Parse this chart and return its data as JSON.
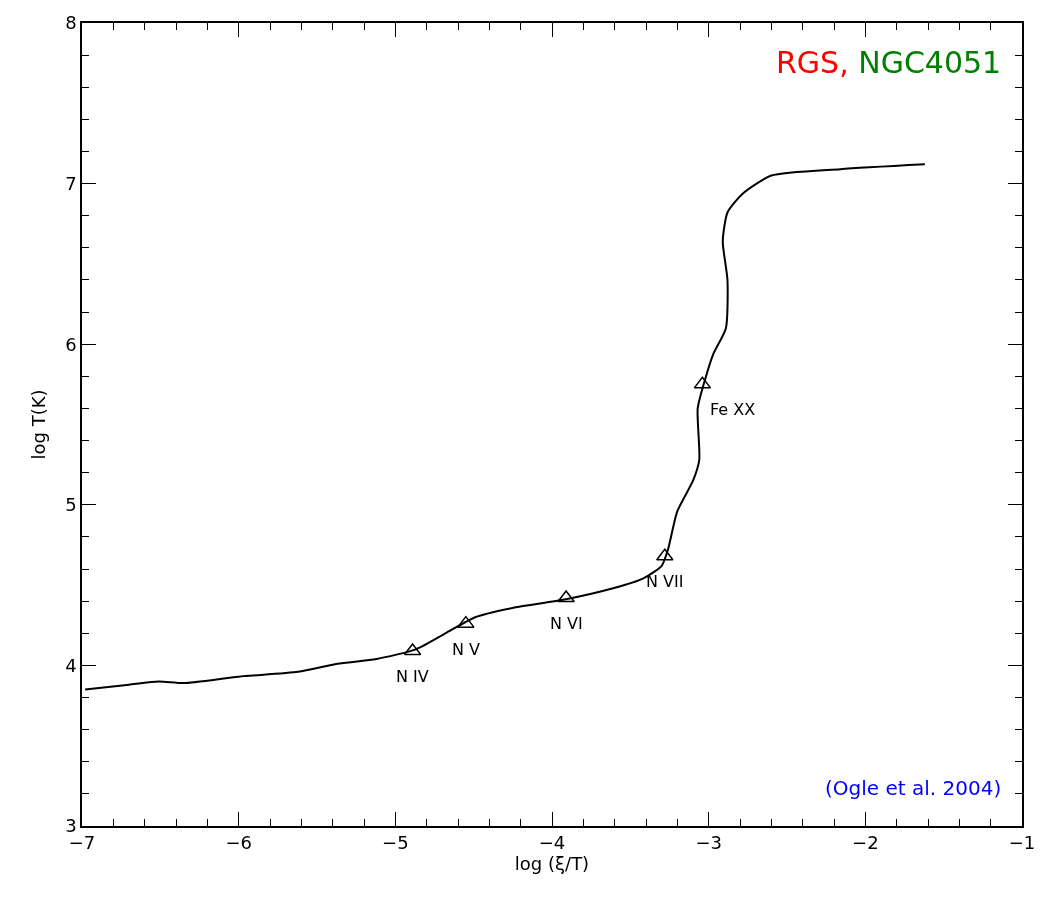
{
  "chart_data": {
    "type": "line",
    "xlabel": "log (ξ/T)",
    "ylabel": "log T(K)",
    "xlim": [
      -7,
      -1
    ],
    "xticks": [
      -7,
      -6,
      -5,
      -4,
      -3,
      -2,
      -1
    ],
    "ylim": [
      3,
      8
    ],
    "yticks": [
      3,
      4,
      5,
      6,
      7,
      8
    ],
    "legend": false,
    "series": [
      {
        "color": "#000000",
        "marker": "none",
        "x": [
          -6.98,
          -6.7,
          -6.51,
          -6.35,
          -6.0,
          -5.62,
          -5.37,
          -5.12,
          -4.87,
          -4.68,
          -4.49,
          -4.24,
          -3.92,
          -3.61,
          -3.42,
          -3.3,
          -3.26,
          -3.2,
          -3.1,
          -3.06,
          -3.07,
          -3.02,
          -2.97,
          -2.89,
          -2.88,
          -2.91,
          -2.88,
          -2.78,
          -2.6,
          -2.16,
          -1.62
        ],
        "values": [
          3.85,
          3.88,
          3.9,
          3.89,
          3.93,
          3.96,
          4.01,
          4.04,
          4.1,
          4.2,
          4.3,
          4.36,
          4.41,
          4.48,
          4.54,
          4.62,
          4.72,
          4.96,
          5.15,
          5.28,
          5.6,
          5.79,
          5.94,
          6.1,
          6.4,
          6.64,
          6.82,
          6.94,
          7.05,
          7.09,
          7.12
        ]
      },
      {
        "type": "scatter",
        "color": "#000000",
        "marker": "triangle",
        "x": [
          -4.89,
          -4.55,
          -3.91,
          -3.28,
          -3.04
        ],
        "values": [
          4.09,
          4.26,
          4.42,
          4.68,
          5.75
        ]
      }
    ],
    "annotations": [
      {
        "text": "N IV",
        "x": -4.89,
        "y": 4.09
      },
      {
        "text": "N V",
        "x": -4.55,
        "y": 4.26
      },
      {
        "text": "N VI",
        "x": -3.91,
        "y": 4.42
      },
      {
        "text": "N VII",
        "x": -3.28,
        "y": 4.68
      },
      {
        "text": "Fe XX",
        "x": -3.04,
        "y": 5.75
      },
      "RGS,",
      "NGC4051",
      "(Ogle et al. 2004)"
    ]
  }
}
